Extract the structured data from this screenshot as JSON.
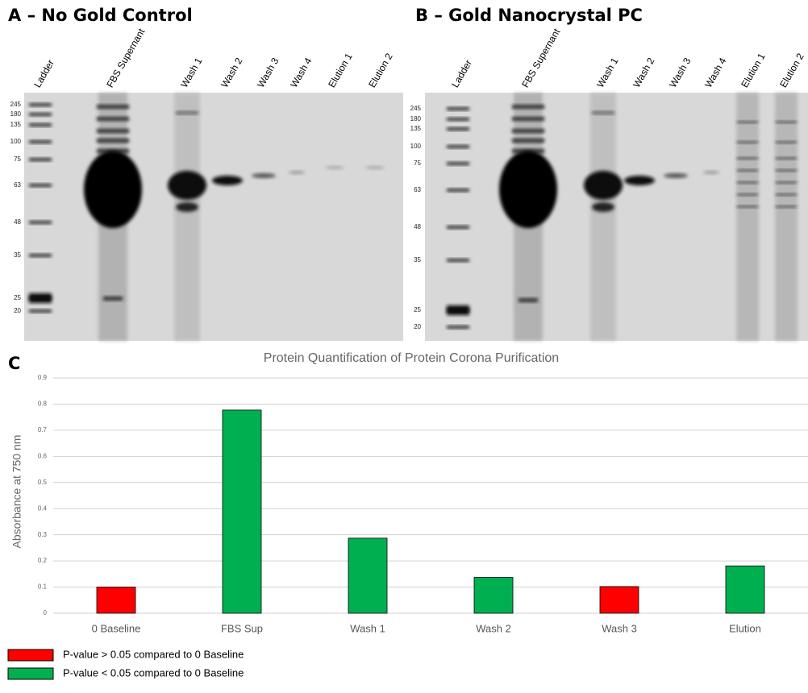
{
  "gels": [
    {
      "label": "A – No Gold Control",
      "lanes": [
        "Ladder",
        "FBS Supernant",
        "Wash 1",
        "Wash 2",
        "Wash 3",
        "Wash 4",
        "Elution 1",
        "Elution 2"
      ],
      "ladder": [
        245,
        180,
        135,
        100,
        75,
        63,
        48,
        35,
        25,
        20
      ]
    },
    {
      "label": "B – Gold Nanocrystal PC",
      "lanes": [
        "Ladder",
        "FBS Supernant",
        "Wash 1",
        "Wash 2",
        "Wash 3",
        "Wash 4",
        "Elution 1",
        "Elution 2"
      ],
      "ladder": [
        245,
        180,
        135,
        100,
        75,
        63,
        48,
        35,
        25,
        20
      ]
    }
  ],
  "chart_data": {
    "type": "bar",
    "panel": "C",
    "title": "Protein Quantification of Protein Corona Purification",
    "y_label": "Absorbance at 750 nm",
    "categories": [
      "0 Baseline",
      "FBS Sup",
      "Wash 1",
      "Wash 2",
      "Wash 3",
      "Elution"
    ],
    "values": [
      0.1,
      0.777,
      0.287,
      0.137,
      0.102,
      0.181
    ],
    "colors": [
      "#ff0000",
      "#00b050",
      "#00b050",
      "#00b050",
      "#ff0000",
      "#00b050"
    ],
    "ylim": [
      0,
      0.9
    ],
    "yticks": [
      0,
      0.1,
      0.2,
      0.3,
      0.4,
      0.5,
      0.6,
      0.7,
      0.8,
      0.9
    ],
    "grid": true,
    "legend": [
      {
        "label": "P-value > 0.05 compared to 0 Baseline",
        "color": "#ff0000"
      },
      {
        "label": "P-value < 0.05 compared to 0 Baseline",
        "color": "#00b050"
      }
    ]
  }
}
